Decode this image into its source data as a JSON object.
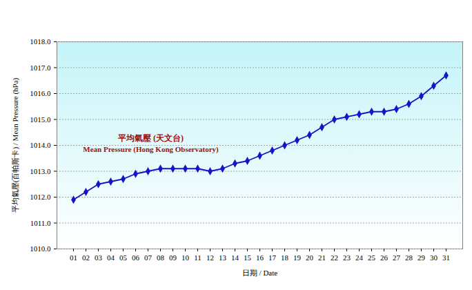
{
  "chart_data": {
    "type": "line",
    "annotations": [
      "平均氣壓 (天文台)",
      "Mean Pressure (Hong Kong Observatory)"
    ],
    "x_label": "日期 / Date",
    "y_label": "平均氣壓(百帕斯卡) / Mean Pressure (hPa)",
    "categories": [
      "01",
      "02",
      "03",
      "04",
      "05",
      "06",
      "07",
      "08",
      "09",
      "10",
      "11",
      "12",
      "13",
      "14",
      "15",
      "16",
      "17",
      "18",
      "19",
      "20",
      "21",
      "22",
      "23",
      "24",
      "25",
      "26",
      "27",
      "28",
      "29",
      "30",
      "31"
    ],
    "values": [
      1011.9,
      1012.2,
      1012.5,
      1012.6,
      1012.7,
      1012.9,
      1013.0,
      1013.1,
      1013.1,
      1013.1,
      1013.1,
      1013.0,
      1013.1,
      1013.3,
      1013.4,
      1013.6,
      1013.8,
      1014.0,
      1014.2,
      1014.4,
      1014.7,
      1015.0,
      1015.1,
      1015.2,
      1015.3,
      1015.3,
      1015.4,
      1015.6,
      1015.9,
      1016.3,
      1016.7
    ],
    "color": "#1414c8",
    "marker": "diamond",
    "ylim": [
      1010,
      1018
    ],
    "yticks": [
      {
        "value": 1010,
        "label": "1010.0"
      },
      {
        "value": 1011,
        "label": "1011.0"
      },
      {
        "value": 1012,
        "label": "1012.0"
      },
      {
        "value": 1013,
        "label": "1013.0"
      },
      {
        "value": 1014,
        "label": "1014.0"
      },
      {
        "value": 1015,
        "label": "1015.0"
      },
      {
        "value": 1016,
        "label": "1016.0"
      },
      {
        "value": 1017,
        "label": "1017.0"
      },
      {
        "value": 1018,
        "label": "1018.0"
      }
    ],
    "grid": true
  }
}
